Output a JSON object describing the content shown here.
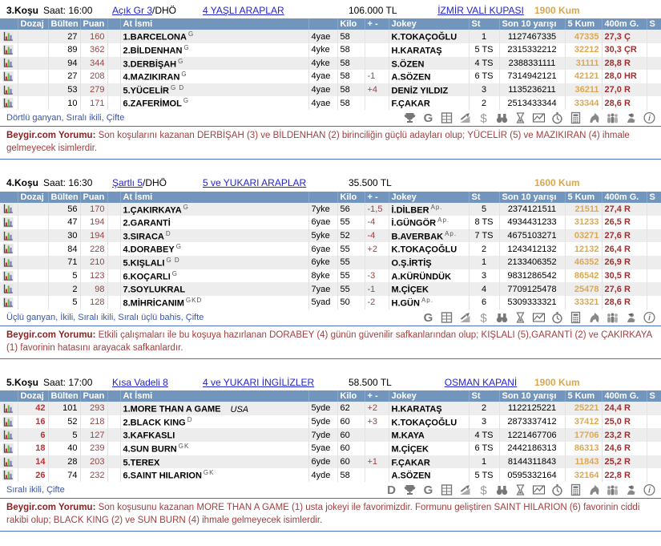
{
  "labels": {
    "saat": "Saat:",
    "comment_label": "Beygir.com Yorumu:"
  },
  "columns": [
    "",
    "Dozaj",
    "Bülten",
    "Puan",
    "",
    "At İsmi",
    "",
    "Kilo",
    "+ -",
    "Jokey",
    "St",
    "Son 10 yarışı",
    "5 Kum",
    "400m G.",
    "S"
  ],
  "colors": {
    "header_blue": "#7295BD",
    "link_blue": "#2323CC",
    "sand": "#DCA851",
    "dark_red": "#A03030",
    "comment_red": "#A04040",
    "alt_row": "#EDEDED"
  },
  "races": [
    {
      "no": "3.Koşu",
      "time": "16:00",
      "condition": "Açık  Gr 3",
      "suffix": "/DHÖ",
      "race_class": "4 YAŞLI ARAPLAR",
      "purse": "106.000 TL",
      "cup": "İZMİR VALİ KUPASI",
      "distance": "1900 Kum",
      "bets": "Dörtlü ganyan, Sıralı ikili, Çifte",
      "comment": "Son koşularını kazanan DERBİŞAH (3) ve BİLDENHAN (2) birinciliğin güçlü adayları olup; YÜCELİR (5) ve MAZIKIRAN (4) ihmale gelmeyecek isimlerdir.",
      "toolbar": [
        "trophy-icon",
        "g-icon",
        "sheet-icon",
        "trend-icon",
        "dollar-icon",
        "binoculars-icon",
        "hourglass-icon",
        "chart-icon",
        "stopwatch-icon",
        "calculator-icon",
        "horse-icon",
        "people-icon",
        "jockey-icon",
        "info-icon"
      ],
      "horses": [
        {
          "dozaj": "",
          "bulten": "27",
          "puan": "160",
          "name": "1.BARCELONA",
          "sup": "G",
          "extra": "",
          "age": "4yae",
          "kilo": "58",
          "plusminus": "",
          "jokey": "K.TOKAÇOĞLU",
          "jokey_sup": "",
          "st": "1",
          "son10": "1127467335",
          "kum5": "47335",
          "m400": "27,3 Ç"
        },
        {
          "dozaj": "",
          "bulten": "89",
          "puan": "362",
          "name": "2.BİLDENHAN",
          "sup": "G",
          "extra": "",
          "age": "4yke",
          "kilo": "58",
          "plusminus": "",
          "jokey": "H.KARATAŞ",
          "jokey_sup": "",
          "st": "5 TS",
          "son10": "2315332212",
          "kum5": "32212",
          "m400": "30,3 ÇR"
        },
        {
          "dozaj": "",
          "bulten": "94",
          "puan": "344",
          "name": "3.DERBİŞAH",
          "sup": "G",
          "extra": "",
          "age": "4yke",
          "kilo": "58",
          "plusminus": "",
          "jokey": "S.ÖZEN",
          "jokey_sup": "",
          "st": "4 TS",
          "son10": "2388331111",
          "kum5": "31111",
          "m400": "28,8 R"
        },
        {
          "dozaj": "",
          "bulten": "27",
          "puan": "208",
          "name": "4.MAZIKIRAN",
          "sup": "G",
          "extra": "",
          "age": "4yae",
          "kilo": "58",
          "plusminus": "-1",
          "jokey": "A.SÖZEN",
          "jokey_sup": "",
          "st": "6 TS",
          "son10": "7314942121",
          "kum5": "42121",
          "m400": "28,0 HR"
        },
        {
          "dozaj": "",
          "bulten": "53",
          "puan": "279",
          "name": "5.YÜCELİR",
          "sup": "G D",
          "extra": "",
          "age": "4yae",
          "kilo": "58",
          "plusminus": "+4",
          "jokey": "DENİZ YILDIZ",
          "jokey_sup": "",
          "st": "3",
          "son10": "1135236211",
          "kum5": "36211",
          "m400": "27,0 R"
        },
        {
          "dozaj": "",
          "bulten": "10",
          "puan": "171",
          "name": "6.ZAFERİMOL",
          "sup": "G",
          "extra": "",
          "age": "4yae",
          "kilo": "58",
          "plusminus": "",
          "jokey": "F.ÇAKAR",
          "jokey_sup": "",
          "st": "2",
          "son10": "2513433344",
          "kum5": "33344",
          "m400": "28,6 R"
        }
      ]
    },
    {
      "no": "4.Koşu",
      "time": "16:30",
      "condition": "Şartlı  5",
      "suffix": "/DHÖ",
      "race_class": "5 ve YUKARI ARAPLAR",
      "purse": "35.500 TL",
      "cup": "",
      "distance": "1600 Kum",
      "bets": "Üçlü ganyan, İkili, Sıralı ikili, Sıralı üçlü bahis, Çifte",
      "comment": "Etkili çalışmaları ile bu koşuya hazırlanan DORABEY (4) günün güvenilir safkanlarından olup; KIŞLALI (5),GARANTİ (2) ve ÇAKIRKAYA (1) favorinin hatasını arayacak safkanlardır.",
      "toolbar": [
        "g-icon",
        "sheet-icon",
        "trend-icon",
        "dollar-icon",
        "binoculars-icon",
        "hourglass-icon",
        "chart-icon",
        "stopwatch-icon",
        "calculator-icon",
        "horse-icon",
        "people-icon",
        "jockey-icon",
        "info-icon"
      ],
      "horses": [
        {
          "dozaj": "",
          "bulten": "56",
          "puan": "170",
          "name": "1.ÇAKIRKAYA",
          "sup": "G",
          "extra": "",
          "age": "7yke",
          "kilo": "56",
          "plusminus": "-1,5",
          "jokey": "İ.DİLBER",
          "jokey_sup": "Ap.",
          "st": "5",
          "son10": "2374121511",
          "kum5": "21511",
          "m400": "27,4 R"
        },
        {
          "dozaj": "",
          "bulten": "47",
          "puan": "194",
          "name": "2.GARANTİ",
          "sup": "",
          "extra": "",
          "age": "6yae",
          "kilo": "55",
          "plusminus": "-4",
          "jokey": "İ.GÜNGÖR",
          "jokey_sup": "Ap.",
          "st": "8 TS",
          "son10": "4934431233",
          "kum5": "31233",
          "m400": "26,5 R"
        },
        {
          "dozaj": "",
          "bulten": "30",
          "puan": "194",
          "name": "3.SIRACA",
          "sup": "D",
          "extra": "",
          "age": "5yke",
          "kilo": "52",
          "plusminus": "-4",
          "jokey": "B.AVERBAK",
          "jokey_sup": "Ap.",
          "st": "7 TS",
          "son10": "4675103271",
          "kum5": "03271",
          "m400": "27,6 R"
        },
        {
          "dozaj": "",
          "bulten": "84",
          "puan": "228",
          "name": "4.DORABEY",
          "sup": "G",
          "extra": "",
          "age": "6yae",
          "kilo": "55",
          "plusminus": "+2",
          "jokey": "K.TOKAÇOĞLU",
          "jokey_sup": "",
          "st": "2",
          "son10": "1243412132",
          "kum5": "12132",
          "m400": "26,4 R"
        },
        {
          "dozaj": "",
          "bulten": "71",
          "puan": "210",
          "name": "5.KIŞLALI",
          "sup": "G D",
          "extra": "",
          "age": "6yke",
          "kilo": "55",
          "plusminus": "",
          "jokey": "O.Ş.İRTİŞ",
          "jokey_sup": "",
          "st": "1",
          "son10": "2133406352",
          "kum5": "46352",
          "m400": "26,9 R"
        },
        {
          "dozaj": "",
          "bulten": "5",
          "puan": "123",
          "name": "6.KOÇARLI",
          "sup": "G",
          "extra": "",
          "age": "8yke",
          "kilo": "55",
          "plusminus": "-3",
          "jokey": "A.KÜRÜNDÜK",
          "jokey_sup": "",
          "st": "3",
          "son10": "9831286542",
          "kum5": "86542",
          "m400": "30,5 R"
        },
        {
          "dozaj": "",
          "bulten": "2",
          "puan": "98",
          "name": "7.SOYLUKRAL",
          "sup": "",
          "extra": "",
          "age": "7yae",
          "kilo": "55",
          "plusminus": "-1",
          "jokey": "M.ÇİÇEK",
          "jokey_sup": "",
          "st": "4",
          "son10": "7709125478",
          "kum5": "25478",
          "m400": "27,6 R"
        },
        {
          "dozaj": "",
          "bulten": "5",
          "puan": "128",
          "name": "8.MİHRİCANIM",
          "sup": "GKD",
          "extra": "",
          "age": "5yad",
          "kilo": "50",
          "plusminus": "-2",
          "jokey": "H.GÜN",
          "jokey_sup": "Ap.",
          "st": "6",
          "son10": "5309333321",
          "kum5": "33321",
          "m400": "28,6 R"
        }
      ]
    },
    {
      "no": "5.Koşu",
      "time": "17:00",
      "condition": "Kısa Vadeli  8",
      "suffix": "",
      "race_class": "4 ve YUKARI İNGİLİZLER",
      "purse": "58.500 TL",
      "cup": "OSMAN KAPANİ",
      "distance": "1900 Kum",
      "bets": "Sıralı ikili, Çifte",
      "comment": "Son koşusunu kazanan MORE THAN A GAME (1) usta jokeyi ile favorimizdir. Formunu geliştiren SAINT HILARION (6) favorinin ciddi rakibi olup; BLACK KING (2) ve SUN BURN (4) ihmale gelmeyecek isimlerdir.",
      "toolbar": [
        "d-icon",
        "trophy-icon",
        "g-icon",
        "sheet-icon",
        "trend-icon",
        "dollar-icon",
        "binoculars-icon",
        "hourglass-icon",
        "chart-icon",
        "stopwatch-icon",
        "calculator-icon",
        "horse-icon",
        "people-icon",
        "jockey-icon",
        "info-icon"
      ],
      "horses": [
        {
          "dozaj": "42",
          "bulten": "101",
          "puan": "293",
          "name": "1.MORE THAN A GAME",
          "sup": "",
          "extra": "USA",
          "age": "5yde",
          "kilo": "62",
          "plusminus": "+2",
          "jokey": "H.KARATAŞ",
          "jokey_sup": "",
          "st": "2",
          "son10": "1122125221",
          "kum5": "25221",
          "m400": "24,4 R"
        },
        {
          "dozaj": "16",
          "bulten": "52",
          "puan": "218",
          "name": "2.BLACK KING",
          "sup": "D",
          "extra": "",
          "age": "5yde",
          "kilo": "60",
          "plusminus": "+3",
          "jokey": "K.TOKAÇOĞLU",
          "jokey_sup": "",
          "st": "3",
          "son10": "2873337412",
          "kum5": "37412",
          "m400": "25,0 R"
        },
        {
          "dozaj": "6",
          "bulten": "5",
          "puan": "127",
          "name": "3.KAFKASLI",
          "sup": "",
          "extra": "",
          "age": "7yde",
          "kilo": "60",
          "plusminus": "",
          "jokey": "M.KAYA",
          "jokey_sup": "",
          "st": "4 TS",
          "son10": "1221467706",
          "kum5": "17706",
          "m400": "23,2 R"
        },
        {
          "dozaj": "18",
          "bulten": "40",
          "puan": "239",
          "name": "4.SUN BURN",
          "sup": "GK",
          "extra": "",
          "age": "5yae",
          "kilo": "60",
          "plusminus": "",
          "jokey": "M.ÇİÇEK",
          "jokey_sup": "",
          "st": "6 TS",
          "son10": "2442186313",
          "kum5": "86313",
          "m400": "24,6 R"
        },
        {
          "dozaj": "14",
          "bulten": "28",
          "puan": "203",
          "name": "5.TEREX",
          "sup": "",
          "extra": "",
          "age": "6yde",
          "kilo": "60",
          "plusminus": "+1",
          "jokey": "F.ÇAKAR",
          "jokey_sup": "",
          "st": "1",
          "son10": "8144311843",
          "kum5": "11843",
          "m400": "25,2 R"
        },
        {
          "dozaj": "26",
          "bulten": "74",
          "puan": "232",
          "name": "6.SAINT HILARION",
          "sup": "GK",
          "extra": "",
          "age": "4yde",
          "kilo": "58",
          "plusminus": "",
          "jokey": "A.SÖZEN",
          "jokey_sup": "",
          "st": "5 TS",
          "son10": "0595332164",
          "kum5": "32164",
          "m400": "22,8 R"
        }
      ]
    }
  ]
}
